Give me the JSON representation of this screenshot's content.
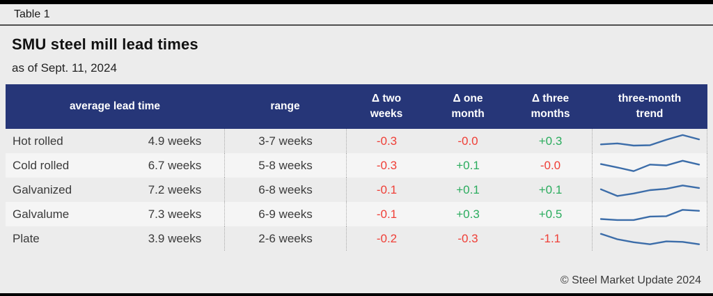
{
  "page": {
    "tag": "Table 1",
    "title": "SMU steel mill lead times",
    "subtitle": "as of Sept. 11, 2024",
    "footer": "© Steel Market Update 2024"
  },
  "colors": {
    "header_bg": "#263678",
    "positive": "#2bac5e",
    "negative": "#ef3e36",
    "sparkline": "#3c6da9",
    "row_alt": "#f5f5f5",
    "background": "#ececec"
  },
  "table": {
    "columns": [
      "average lead time",
      "range",
      "Δ two\nweeks",
      "Δ one\nmonth",
      "Δ three\nmonths",
      "three-month\ntrend"
    ],
    "rows": [
      {
        "product": "Hot rolled",
        "avg": "4.9 weeks",
        "range": "3-7 weeks",
        "d2w": "-0.3",
        "d1m": "-0.0",
        "d3m": "+0.3",
        "trend": [
          0.32,
          0.38,
          0.25,
          0.27,
          0.6,
          0.88,
          0.62
        ]
      },
      {
        "product": "Cold rolled",
        "avg": "6.7 weeks",
        "range": "5-8 weeks",
        "d2w": "-0.3",
        "d1m": "+0.1",
        "d3m": "-0.0",
        "trend": [
          0.6,
          0.4,
          0.18,
          0.57,
          0.52,
          0.8,
          0.57
        ]
      },
      {
        "product": "Galvanized",
        "avg": "7.2 weeks",
        "range": "6-8 weeks",
        "d2w": "-0.1",
        "d1m": "+0.1",
        "d3m": "+0.1",
        "trend": [
          0.55,
          0.15,
          0.3,
          0.5,
          0.58,
          0.78,
          0.63
        ]
      },
      {
        "product": "Galvalume",
        "avg": "7.3 weeks",
        "range": "6-9 weeks",
        "d2w": "-0.1",
        "d1m": "+0.3",
        "d3m": "+0.5",
        "trend": [
          0.23,
          0.17,
          0.17,
          0.38,
          0.4,
          0.78,
          0.72
        ]
      },
      {
        "product": "Plate",
        "avg": "3.9 weeks",
        "range": "2-6 weeks",
        "d2w": "-0.2",
        "d1m": "-0.3",
        "d3m": "-1.1",
        "trend": [
          0.8,
          0.48,
          0.3,
          0.18,
          0.35,
          0.32,
          0.18
        ]
      }
    ]
  },
  "chart_data": {
    "type": "table",
    "title": "SMU steel mill lead times",
    "subtitle": "as of Sept. 11, 2024",
    "columns": [
      "product",
      "average lead time",
      "range",
      "Δ two weeks",
      "Δ one month",
      "Δ three months",
      "three-month trend"
    ],
    "rows": [
      {
        "product": "Hot rolled",
        "average_lead_time_weeks": 4.9,
        "range": "3-7 weeks",
        "delta_two_weeks": -0.3,
        "delta_one_month": -0.0,
        "delta_three_months": 0.3,
        "trend_sparkline": [
          0.32,
          0.38,
          0.25,
          0.27,
          0.6,
          0.88,
          0.62
        ]
      },
      {
        "product": "Cold rolled",
        "average_lead_time_weeks": 6.7,
        "range": "5-8 weeks",
        "delta_two_weeks": -0.3,
        "delta_one_month": 0.1,
        "delta_three_months": -0.0,
        "trend_sparkline": [
          0.6,
          0.4,
          0.18,
          0.57,
          0.52,
          0.8,
          0.57
        ]
      },
      {
        "product": "Galvanized",
        "average_lead_time_weeks": 7.2,
        "range": "6-8 weeks",
        "delta_two_weeks": -0.1,
        "delta_one_month": 0.1,
        "delta_three_months": 0.1,
        "trend_sparkline": [
          0.55,
          0.15,
          0.3,
          0.5,
          0.58,
          0.78,
          0.63
        ]
      },
      {
        "product": "Galvalume",
        "average_lead_time_weeks": 7.3,
        "range": "6-9 weeks",
        "delta_two_weeks": -0.1,
        "delta_one_month": 0.3,
        "delta_three_months": 0.5,
        "trend_sparkline": [
          0.23,
          0.17,
          0.17,
          0.38,
          0.4,
          0.78,
          0.72
        ]
      },
      {
        "product": "Plate",
        "average_lead_time_weeks": 3.9,
        "range": "2-6 weeks",
        "delta_two_weeks": -0.2,
        "delta_one_month": -0.3,
        "delta_three_months": -1.1,
        "trend_sparkline": [
          0.8,
          0.48,
          0.3,
          0.18,
          0.35,
          0.32,
          0.18
        ]
      }
    ],
    "legend_position": "none",
    "notes": "negative deltas shown in red, positive in green; sparklines show three-month trend"
  }
}
